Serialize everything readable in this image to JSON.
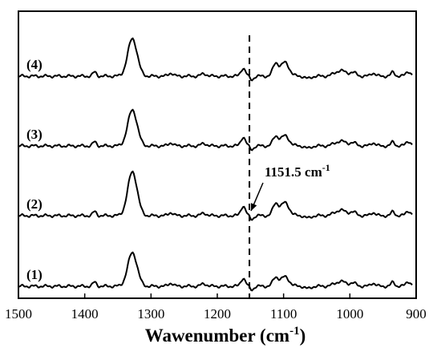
{
  "chart_data": {
    "type": "line",
    "xlabel": "Wawenumber (cm",
    "xlabel_sup": "-1",
    "xlabel_close": ")",
    "ylabel": "",
    "xlim": [
      1500,
      900
    ],
    "x_reversed": true,
    "xticks": [
      1500,
      1400,
      1300,
      1200,
      1100,
      1000,
      900
    ],
    "grid": false,
    "legend": "none",
    "series": [
      {
        "name": "(1)",
        "baseline": 0,
        "peak_1328": 0.42,
        "peak_1160": 0.1,
        "band_1105": 0.13,
        "band_1010": 0.06
      },
      {
        "name": "(2)",
        "baseline": 1,
        "peak_1328": 0.55,
        "peak_1160": 0.12,
        "band_1105": 0.18,
        "band_1010": 0.07
      },
      {
        "name": "(3)",
        "baseline": 2,
        "peak_1328": 0.45,
        "peak_1160": 0.11,
        "band_1105": 0.14,
        "band_1010": 0.06
      },
      {
        "name": "(4)",
        "baseline": 3,
        "peak_1328": 0.47,
        "peak_1160": 0.1,
        "band_1105": 0.19,
        "band_1010": 0.07
      }
    ],
    "annotations": [
      {
        "text": "1151.5 cm",
        "sup": "-1",
        "x": 1151.5,
        "series": "(2)",
        "style": "dashed vertical line with arrow"
      }
    ],
    "colors": {
      "line": "#000000",
      "axis": "#000000",
      "background": "#ffffff"
    }
  }
}
